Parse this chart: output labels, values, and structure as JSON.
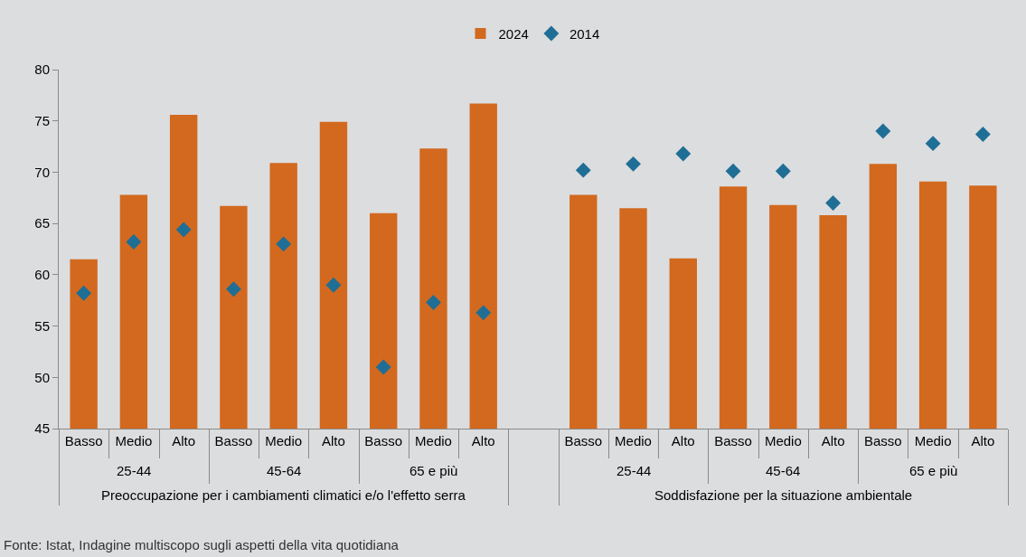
{
  "chart_data": {
    "type": "bar",
    "categories": [
      "Basso",
      "Medio",
      "Alto",
      "Basso",
      "Medio",
      "Alto",
      "Basso",
      "Medio",
      "Alto",
      null,
      "Basso",
      "Medio",
      "Alto",
      "Basso",
      "Medio",
      "Alto",
      "Basso",
      "Medio",
      "Alto"
    ],
    "series": [
      {
        "name": "2024",
        "color": "#d2691e",
        "values": [
          61.5,
          67.8,
          75.6,
          66.7,
          70.9,
          74.9,
          66.0,
          72.3,
          76.7,
          null,
          67.8,
          66.5,
          61.6,
          68.6,
          66.8,
          65.8,
          70.8,
          69.1,
          68.7
        ]
      },
      {
        "name": "2014",
        "type": "scatter",
        "color": "#1f6e96",
        "values": [
          58.2,
          63.2,
          64.4,
          58.6,
          63.0,
          59.0,
          51.0,
          57.3,
          56.3,
          null,
          70.2,
          70.8,
          71.8,
          70.1,
          70.1,
          67.0,
          74.0,
          72.8,
          73.7
        ]
      }
    ],
    "ylim": [
      45,
      80
    ],
    "yticks": [
      45,
      50,
      55,
      60,
      65,
      70,
      75,
      80
    ],
    "grid": false,
    "legend": "top",
    "marker": "diamond",
    "annotations": [
      "25-44",
      "45-64",
      "65 e più",
      "Preoccupazione per i cambiamenti climatici e/o l'effetto serra",
      "25-44",
      "45-64",
      "65 e più",
      "Soddisfazione per la situazione ambientale",
      "Fonte: Istat, Indagine multiscopo sugli aspetti della vita quotidiana"
    ]
  }
}
